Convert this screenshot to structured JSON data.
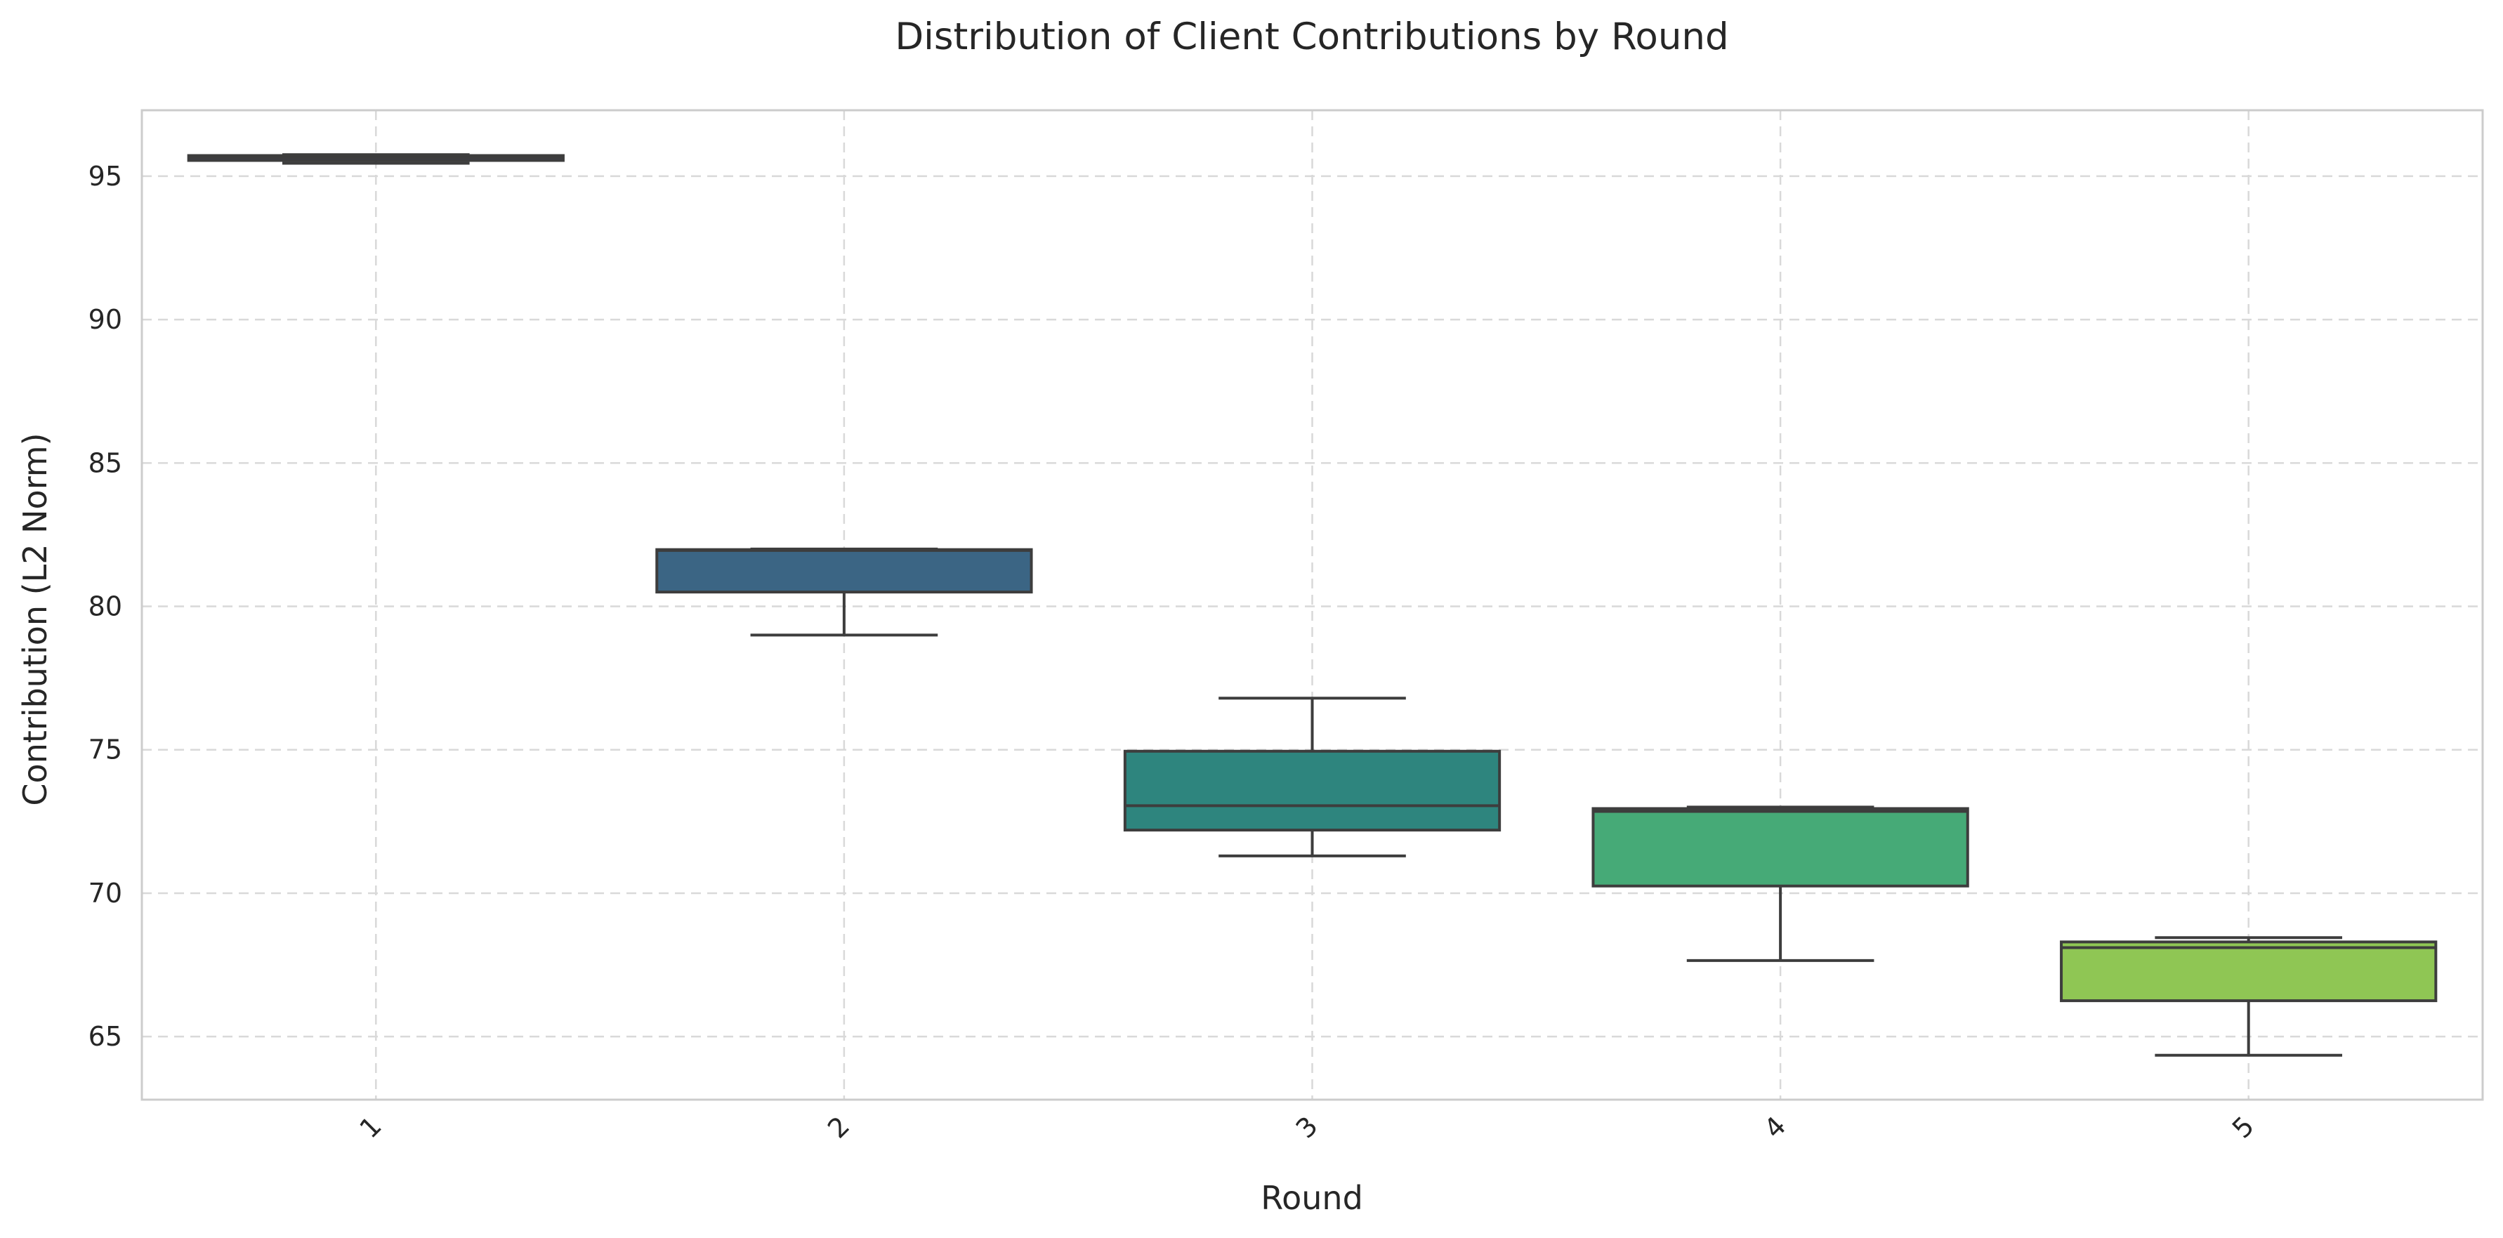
{
  "chart_data": {
    "type": "box",
    "title": "Distribution of Client Contributions by Round",
    "xlabel": "Round",
    "ylabel": "Contribution (L2 Norm)",
    "categories": [
      "1",
      "2",
      "3",
      "4",
      "5"
    ],
    "yticks": [
      "65",
      "70",
      "75",
      "80",
      "85",
      "90",
      "95"
    ],
    "ylim": [
      62.8,
      97.3
    ],
    "grid": true,
    "legend": "none",
    "boxes": [
      {
        "category": "1",
        "whisker_low": 95.45,
        "q1": 95.55,
        "median": 95.65,
        "q3": 95.72,
        "whisker_high": 95.75,
        "color": "#414487"
      },
      {
        "category": "2",
        "whisker_low": 79.0,
        "q1": 80.5,
        "median": 81.95,
        "q3": 81.98,
        "whisker_high": 82.0,
        "color": "#3b6584"
      },
      {
        "category": "3",
        "whisker_low": 71.3,
        "q1": 72.2,
        "median": 73.05,
        "q3": 74.95,
        "whisker_high": 76.8,
        "color": "#2e857e"
      },
      {
        "category": "4",
        "whisker_low": 67.65,
        "q1": 70.25,
        "median": 72.85,
        "q3": 72.95,
        "whisker_high": 73.0,
        "color": "#46aa77"
      },
      {
        "category": "5",
        "whisker_low": 64.35,
        "q1": 66.25,
        "median": 68.1,
        "q3": 68.3,
        "whisker_high": 68.45,
        "color": "#8fc654"
      }
    ]
  }
}
